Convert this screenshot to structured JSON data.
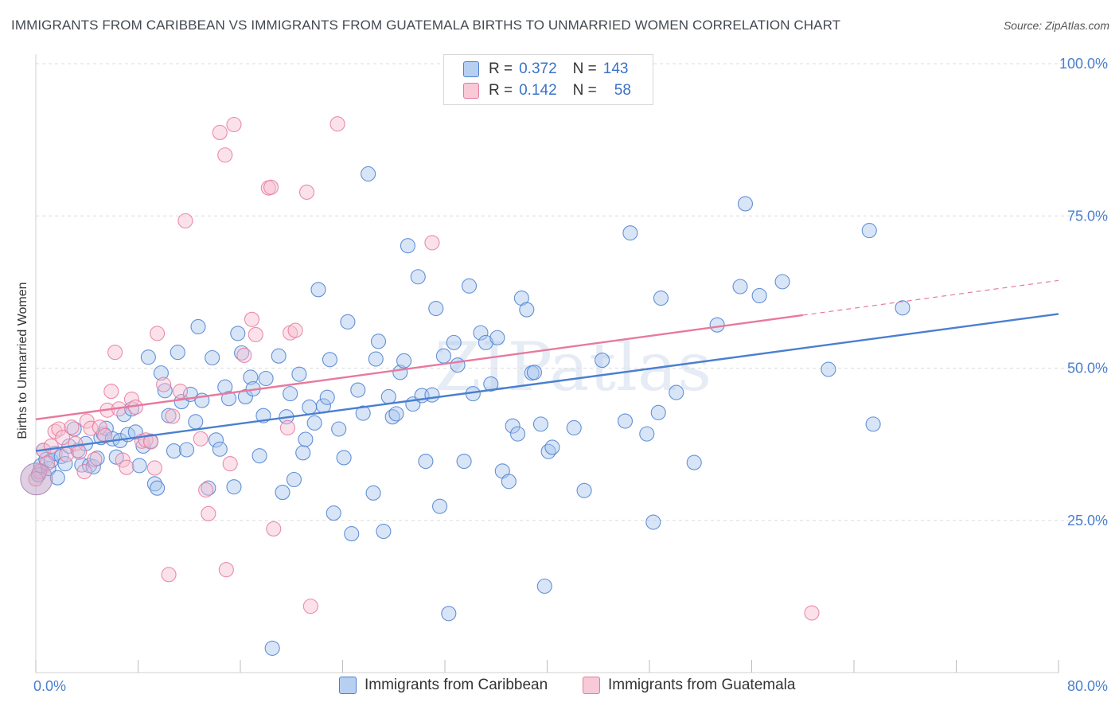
{
  "title": "IMMIGRANTS FROM CARIBBEAN VS IMMIGRANTS FROM GUATEMALA BIRTHS TO UNMARRIED WOMEN CORRELATION CHART",
  "source": "Source: ZipAtlas.com",
  "watermark": "ZIPatlas",
  "colors": {
    "blue": "#4a7fd0",
    "pink": "#e8799c",
    "blue_fill": "#a9c6ee",
    "pink_fill": "#f6bfd0"
  },
  "legend": {
    "rows": [
      {
        "r_label": "R =",
        "r_value": "0.372",
        "n_label": "N =",
        "n_value": "143",
        "color": "blue"
      },
      {
        "r_label": "R =",
        "r_value": "0.142",
        "n_label": "N =",
        "n_value": "58",
        "color": "pink"
      }
    ]
  },
  "chart_data": {
    "type": "scatter",
    "xlabel": "",
    "ylabel": "Births to Unmarried Women",
    "xlim": [
      0,
      80
    ],
    "ylim": [
      0,
      100
    ],
    "x_tick_labels": [
      "0.0%",
      "80.0%"
    ],
    "y_tick_labels": [
      "25.0%",
      "50.0%",
      "75.0%",
      "100.0%"
    ],
    "y_tick_values": [
      25,
      50,
      75,
      100
    ],
    "grid": true,
    "legend_position": "top-center",
    "series": [
      {
        "name": "Immigrants from Caribbean",
        "color": "blue",
        "trendline": {
          "x": [
            0,
            80
          ],
          "y": [
            36.4,
            58.9
          ]
        },
        "points": [
          [
            0.2,
            32.5
          ],
          [
            0.4,
            34.0
          ],
          [
            0.6,
            36.5
          ],
          [
            0.8,
            35.0
          ],
          [
            1.0,
            33.5
          ],
          [
            1.2,
            34.8
          ],
          [
            1.5,
            36.0
          ],
          [
            1.7,
            32.0
          ],
          [
            2.0,
            35.5
          ],
          [
            2.3,
            34.3
          ],
          [
            2.6,
            37.2
          ],
          [
            3.0,
            40.0
          ],
          [
            3.3,
            36.5
          ],
          [
            3.6,
            34.1
          ],
          [
            3.9,
            37.6
          ],
          [
            4.2,
            34.0
          ],
          [
            4.5,
            33.8
          ],
          [
            4.8,
            35.2
          ],
          [
            5.1,
            38.6
          ],
          [
            5.3,
            39.2
          ],
          [
            5.5,
            40.1
          ],
          [
            6.0,
            38.4
          ],
          [
            6.3,
            35.4
          ],
          [
            6.6,
            38.1
          ],
          [
            6.9,
            42.4
          ],
          [
            7.2,
            39.1
          ],
          [
            7.5,
            43.3
          ],
          [
            7.8,
            39.5
          ],
          [
            8.1,
            34.0
          ],
          [
            8.4,
            37.2
          ],
          [
            8.8,
            51.8
          ],
          [
            9.0,
            38.0
          ],
          [
            9.3,
            31.0
          ],
          [
            9.5,
            30.3
          ],
          [
            9.8,
            49.2
          ],
          [
            10.1,
            46.3
          ],
          [
            10.4,
            42.2
          ],
          [
            10.8,
            36.4
          ],
          [
            11.1,
            52.6
          ],
          [
            11.4,
            44.5
          ],
          [
            11.8,
            36.6
          ],
          [
            12.1,
            45.7
          ],
          [
            12.5,
            41.2
          ],
          [
            12.7,
            56.8
          ],
          [
            13.0,
            44.7
          ],
          [
            13.5,
            30.3
          ],
          [
            13.8,
            51.7
          ],
          [
            14.1,
            38.2
          ],
          [
            14.4,
            36.7
          ],
          [
            14.8,
            46.9
          ],
          [
            15.1,
            45.0
          ],
          [
            15.5,
            30.5
          ],
          [
            15.8,
            55.7
          ],
          [
            16.1,
            52.5
          ],
          [
            16.4,
            45.3
          ],
          [
            16.8,
            48.5
          ],
          [
            17.0,
            46.6
          ],
          [
            17.5,
            35.6
          ],
          [
            17.8,
            42.2
          ],
          [
            18.0,
            48.3
          ],
          [
            18.5,
            4.0
          ],
          [
            19.0,
            52.0
          ],
          [
            19.3,
            29.6
          ],
          [
            19.6,
            42.0
          ],
          [
            19.9,
            45.8
          ],
          [
            20.2,
            31.7
          ],
          [
            20.6,
            49.0
          ],
          [
            20.9,
            36.1
          ],
          [
            21.1,
            38.3
          ],
          [
            21.4,
            43.6
          ],
          [
            21.8,
            41.0
          ],
          [
            22.1,
            62.9
          ],
          [
            22.5,
            43.8
          ],
          [
            22.8,
            45.2
          ],
          [
            23.0,
            51.4
          ],
          [
            23.3,
            26.2
          ],
          [
            23.7,
            40.0
          ],
          [
            24.1,
            35.3
          ],
          [
            24.4,
            57.6
          ],
          [
            24.7,
            22.8
          ],
          [
            25.2,
            46.4
          ],
          [
            25.6,
            42.6
          ],
          [
            26.0,
            81.9
          ],
          [
            26.4,
            29.5
          ],
          [
            26.6,
            51.5
          ],
          [
            26.8,
            54.4
          ],
          [
            27.2,
            23.2
          ],
          [
            27.6,
            45.3
          ],
          [
            27.9,
            42.0
          ],
          [
            28.2,
            42.5
          ],
          [
            28.5,
            49.3
          ],
          [
            28.8,
            51.2
          ],
          [
            29.1,
            70.1
          ],
          [
            29.5,
            44.1
          ],
          [
            29.9,
            65.0
          ],
          [
            30.2,
            45.5
          ],
          [
            30.5,
            34.7
          ],
          [
            31.0,
            45.6
          ],
          [
            31.3,
            59.8
          ],
          [
            31.6,
            27.3
          ],
          [
            31.9,
            52.0
          ],
          [
            32.3,
            9.7
          ],
          [
            32.7,
            54.2
          ],
          [
            33.0,
            50.5
          ],
          [
            33.5,
            34.7
          ],
          [
            33.9,
            63.5
          ],
          [
            34.2,
            45.8
          ],
          [
            34.8,
            55.8
          ],
          [
            35.2,
            54.2
          ],
          [
            35.6,
            47.4
          ],
          [
            36.1,
            55.0
          ],
          [
            36.5,
            33.1
          ],
          [
            37.0,
            31.4
          ],
          [
            37.3,
            40.5
          ],
          [
            37.7,
            39.2
          ],
          [
            38.0,
            61.5
          ],
          [
            38.4,
            59.6
          ],
          [
            38.8,
            49.2
          ],
          [
            39.0,
            49.3
          ],
          [
            39.5,
            40.8
          ],
          [
            39.8,
            14.2
          ],
          [
            40.1,
            36.3
          ],
          [
            40.4,
            37.0
          ],
          [
            42.1,
            40.2
          ],
          [
            42.9,
            29.9
          ],
          [
            44.3,
            51.3
          ],
          [
            46.1,
            41.3
          ],
          [
            46.5,
            72.2
          ],
          [
            47.8,
            39.2
          ],
          [
            48.3,
            24.7
          ],
          [
            48.7,
            42.7
          ],
          [
            48.9,
            61.5
          ],
          [
            50.1,
            46.0
          ],
          [
            51.5,
            34.5
          ],
          [
            53.3,
            57.1
          ],
          [
            55.1,
            63.4
          ],
          [
            55.5,
            77.0
          ],
          [
            56.6,
            61.9
          ],
          [
            58.4,
            64.2
          ],
          [
            62.0,
            49.8
          ],
          [
            65.2,
            72.6
          ],
          [
            65.5,
            40.8
          ],
          [
            67.8,
            59.9
          ]
        ]
      },
      {
        "name": "Immigrants from Guatemala",
        "color": "pink",
        "trendline": {
          "x": [
            0,
            60
          ],
          "y": [
            41.6,
            58.7
          ],
          "dashed_to": [
            80,
            64.4
          ]
        },
        "points": [
          [
            0.3,
            33.0
          ],
          [
            0.6,
            36.5
          ],
          [
            0.9,
            34.4
          ],
          [
            1.2,
            37.2
          ],
          [
            1.5,
            39.6
          ],
          [
            1.8,
            40.0
          ],
          [
            2.1,
            38.6
          ],
          [
            2.4,
            35.8
          ],
          [
            2.8,
            40.3
          ],
          [
            3.1,
            37.6
          ],
          [
            3.4,
            36.2
          ],
          [
            3.8,
            33.0
          ],
          [
            4.0,
            41.3
          ],
          [
            4.3,
            40.1
          ],
          [
            4.6,
            35.0
          ],
          [
            5.0,
            40.3
          ],
          [
            5.4,
            38.9
          ],
          [
            5.6,
            43.1
          ],
          [
            5.9,
            46.2
          ],
          [
            6.2,
            52.6
          ],
          [
            6.5,
            43.3
          ],
          [
            6.8,
            34.9
          ],
          [
            7.1,
            33.7
          ],
          [
            7.5,
            44.9
          ],
          [
            7.8,
            43.6
          ],
          [
            8.3,
            38.0
          ],
          [
            8.6,
            38.2
          ],
          [
            9.0,
            37.9
          ],
          [
            9.3,
            33.6
          ],
          [
            9.5,
            55.7
          ],
          [
            10.0,
            47.3
          ],
          [
            10.4,
            16.1
          ],
          [
            10.7,
            42.1
          ],
          [
            11.3,
            46.2
          ],
          [
            11.7,
            74.2
          ],
          [
            12.9,
            38.4
          ],
          [
            13.3,
            30.0
          ],
          [
            13.5,
            26.1
          ],
          [
            14.4,
            88.7
          ],
          [
            14.8,
            85.0
          ],
          [
            14.9,
            16.9
          ],
          [
            15.2,
            34.3
          ],
          [
            15.5,
            90.0
          ],
          [
            16.3,
            52.1
          ],
          [
            16.9,
            58.0
          ],
          [
            17.2,
            55.5
          ],
          [
            18.2,
            79.6
          ],
          [
            18.4,
            79.7
          ],
          [
            18.6,
            23.6
          ],
          [
            19.7,
            40.2
          ],
          [
            19.9,
            55.8
          ],
          [
            20.3,
            56.2
          ],
          [
            21.2,
            78.9
          ],
          [
            21.5,
            10.9
          ],
          [
            23.6,
            90.1
          ],
          [
            31.0,
            70.6
          ],
          [
            60.7,
            9.8
          ],
          [
            0.0,
            31.8
          ]
        ]
      }
    ]
  },
  "bottom_legend": [
    {
      "label": "Immigrants from Caribbean",
      "color": "blue"
    },
    {
      "label": "Immigrants from Guatemala",
      "color": "pink"
    }
  ]
}
